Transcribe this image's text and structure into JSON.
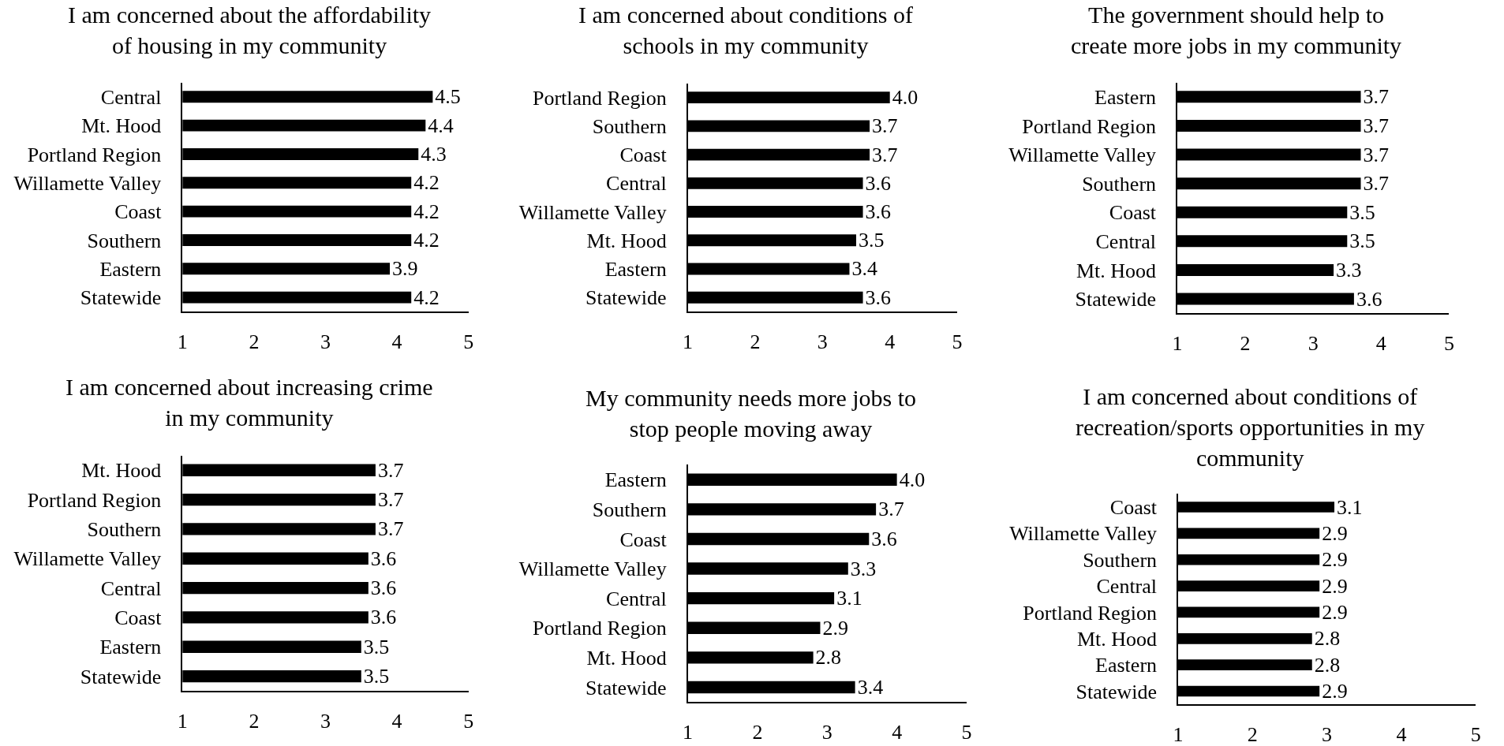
{
  "chart_data": [
    {
      "type": "bar",
      "orientation": "horizontal",
      "title": "I am concerned about the affordability\nof housing in my community",
      "categories": [
        "Central",
        "Mt. Hood",
        "Portland Region",
        "Willamette Valley",
        "Coast",
        "Southern",
        "Eastern",
        "Statewide"
      ],
      "values": [
        4.5,
        4.4,
        4.3,
        4.2,
        4.2,
        4.2,
        3.9,
        4.2
      ],
      "value_labels": [
        "4.5",
        "4.4",
        "4.3",
        "4.2",
        "4.2",
        "4.2",
        "3.9",
        "4.2"
      ],
      "color": "#000000",
      "xlim": [
        1,
        5
      ],
      "xticks": [
        1,
        2,
        3,
        4,
        5
      ]
    },
    {
      "type": "bar",
      "orientation": "horizontal",
      "title": "I am concerned about conditions of\nschools in my community",
      "categories": [
        "Portland Region",
        "Southern",
        "Coast",
        "Central",
        "Willamette Valley",
        "Mt. Hood",
        "Eastern",
        "Statewide"
      ],
      "values": [
        4.0,
        3.7,
        3.7,
        3.6,
        3.6,
        3.5,
        3.4,
        3.6
      ],
      "value_labels": [
        "4.0",
        "3.7",
        "3.7",
        "3.6",
        "3.6",
        "3.5",
        "3.4",
        "3.6"
      ],
      "color": "#000000",
      "xlim": [
        1,
        5
      ],
      "xticks": [
        1,
        2,
        3,
        4,
        5
      ]
    },
    {
      "type": "bar",
      "orientation": "horizontal",
      "title": "The government should help to\ncreate more jobs in my community",
      "categories": [
        "Eastern",
        "Portland Region",
        "Willamette Valley",
        "Southern",
        "Coast",
        "Central",
        "Mt. Hood",
        "Statewide"
      ],
      "values": [
        3.7,
        3.7,
        3.7,
        3.7,
        3.5,
        3.5,
        3.3,
        3.6
      ],
      "value_labels": [
        "3.7",
        "3.7",
        "3.7",
        "3.7",
        "3.5",
        "3.5",
        "3.3",
        "3.6"
      ],
      "color": "#000000",
      "xlim": [
        1,
        5
      ],
      "xticks": [
        1,
        2,
        3,
        4,
        5
      ]
    },
    {
      "type": "bar",
      "orientation": "horizontal",
      "title": "I am concerned about increasing crime\nin my community",
      "categories": [
        "Mt. Hood",
        "Portland Region",
        "Southern",
        "Willamette Valley",
        "Central",
        "Coast",
        "Eastern",
        "Statewide"
      ],
      "values": [
        3.7,
        3.7,
        3.7,
        3.6,
        3.6,
        3.6,
        3.5,
        3.5
      ],
      "value_labels": [
        "3.7",
        "3.7",
        "3.7",
        "3.6",
        "3.6",
        "3.6",
        "3.5",
        "3.5"
      ],
      "color": "#000000",
      "xlim": [
        1,
        5
      ],
      "xticks": [
        1,
        2,
        3,
        4,
        5
      ]
    },
    {
      "type": "bar",
      "orientation": "horizontal",
      "title": "My community needs more jobs to\nstop people moving away",
      "categories": [
        "Eastern",
        "Southern",
        "Coast",
        "Willamette Valley",
        "Central",
        "Portland Region",
        "Mt. Hood",
        "Statewide"
      ],
      "values": [
        4.0,
        3.7,
        3.6,
        3.3,
        3.1,
        2.9,
        2.8,
        3.4
      ],
      "value_labels": [
        "4.0",
        "3.7",
        "3.6",
        "3.3",
        "3.1",
        "2.9",
        "2.8",
        "3.4"
      ],
      "color": "#000000",
      "xlim": [
        1,
        5
      ],
      "xticks": [
        1,
        2,
        3,
        4,
        5
      ]
    },
    {
      "type": "bar",
      "orientation": "horizontal",
      "title": "I am concerned about conditions of\nrecreation/sports opportunities in my\ncommunity",
      "categories": [
        "Coast",
        "Willamette Valley",
        "Southern",
        "Central",
        "Portland Region",
        "Mt. Hood",
        "Eastern",
        "Statewide"
      ],
      "values": [
        3.1,
        2.9,
        2.9,
        2.9,
        2.9,
        2.8,
        2.8,
        2.9
      ],
      "value_labels": [
        "3.1",
        "2.9",
        "2.9",
        "2.9",
        "2.9",
        "2.8",
        "2.8",
        "2.9"
      ],
      "color": "#000000",
      "xlim": [
        1,
        5
      ],
      "xticks": [
        1,
        2,
        3,
        4,
        5
      ]
    }
  ]
}
